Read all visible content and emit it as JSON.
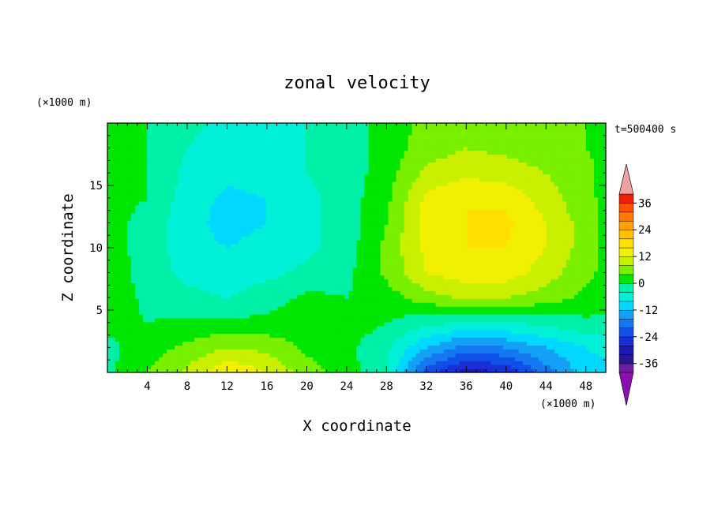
{
  "chart_data": {
    "type": "heatmap",
    "title": "zonal velocity",
    "xlabel": "X coordinate",
    "ylabel": "Z coordinate",
    "x_unit": "(×1000 m)",
    "y_unit": "(×1000 m)",
    "time_label": "t=500400 s",
    "xlim": [
      0,
      50
    ],
    "ylim": [
      0,
      20
    ],
    "x_ticks": [
      4,
      8,
      12,
      16,
      20,
      24,
      28,
      32,
      36,
      40,
      44,
      48
    ],
    "y_ticks": [
      5,
      10,
      15
    ],
    "colorbar": {
      "levels": [
        -40,
        -36,
        -32,
        -28,
        -24,
        -20,
        -16,
        -12,
        -8,
        -4,
        0,
        4,
        8,
        12,
        16,
        20,
        24,
        28,
        32,
        36,
        40
      ],
      "tick_labels": [
        36,
        24,
        12,
        0,
        -12,
        -24,
        -36
      ],
      "colors": [
        "#6a1fa0",
        "#2b1690",
        "#1b1bb4",
        "#1a2fd8",
        "#1050e8",
        "#1478f0",
        "#14a0f4",
        "#00d8ff",
        "#00f0d8",
        "#00f0a8",
        "#00e600",
        "#78f000",
        "#c8f000",
        "#f0f000",
        "#ffe000",
        "#ffc000",
        "#ffa000",
        "#ff7800",
        "#ff5000",
        "#f02000"
      ],
      "under_color": "#8a10b0",
      "over_color": "#f0a0a0"
    },
    "field_x": [
      0,
      4,
      8,
      12,
      16,
      20,
      24,
      28,
      32,
      36,
      40,
      44,
      48,
      50
    ],
    "field_z": [
      0,
      2,
      4,
      6,
      8,
      10,
      12,
      14,
      16,
      18,
      20
    ],
    "field_u": [
      [
        -1,
        4,
        9,
        16,
        12,
        6,
        2,
        -4,
        -22,
        -30,
        -28,
        -18,
        -10,
        -9
      ],
      [
        -1,
        2,
        5,
        8,
        7,
        3,
        1,
        -3,
        -12,
        -18,
        -16,
        -12,
        -8,
        -7
      ],
      [
        1,
        0,
        1,
        1,
        1,
        3,
        2,
        0,
        -3,
        -4,
        -4,
        -3,
        -1,
        -1
      ],
      [
        3,
        -1,
        -3,
        -4,
        -2,
        1,
        0,
        2,
        6,
        9,
        8,
        6,
        3,
        2
      ],
      [
        3,
        -2,
        -5,
        -6,
        -5,
        -3,
        -1,
        5,
        12,
        14,
        14,
        10,
        5,
        3
      ],
      [
        1,
        -1,
        -7,
        -8,
        -7,
        -5,
        -2,
        5,
        13,
        16,
        16,
        12,
        6,
        3
      ],
      [
        1,
        -1,
        -7,
        -9,
        -8,
        -5,
        -2,
        4,
        14,
        16,
        17,
        12,
        6,
        3
      ],
      [
        1,
        0,
        -6,
        -9,
        -8,
        -5,
        -2,
        3,
        13,
        16,
        15,
        10,
        5,
        3
      ],
      [
        1,
        0,
        -5,
        -7,
        -6,
        -4,
        -2,
        2,
        9,
        11,
        10,
        8,
        5,
        3
      ],
      [
        1,
        0,
        -4,
        -6,
        -5,
        -4,
        -2,
        2,
        6,
        8,
        7,
        6,
        4,
        3
      ],
      [
        1,
        0,
        -3,
        -5,
        -4,
        -4,
        -2,
        2,
        5,
        7,
        6,
        5,
        4,
        3
      ]
    ]
  }
}
